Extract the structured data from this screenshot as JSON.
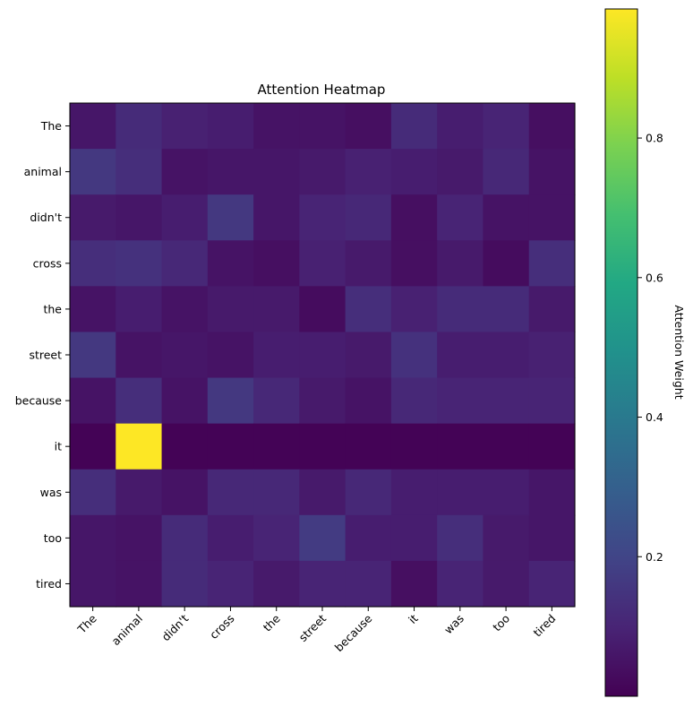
{
  "chart_data": {
    "type": "heatmap",
    "title": "Attention Heatmap",
    "x_labels": [
      "The",
      "animal",
      "didn't",
      "cross",
      "the",
      "street",
      "because",
      "it",
      "was",
      "too",
      "tired"
    ],
    "y_labels": [
      "The",
      "animal",
      "didn't",
      "cross",
      "the",
      "street",
      "because",
      "it",
      "was",
      "too",
      "tired"
    ],
    "values": [
      [
        0.06,
        0.12,
        0.09,
        0.08,
        0.05,
        0.05,
        0.04,
        0.12,
        0.08,
        0.1,
        0.04
      ],
      [
        0.16,
        0.13,
        0.05,
        0.06,
        0.06,
        0.07,
        0.09,
        0.08,
        0.07,
        0.11,
        0.05
      ],
      [
        0.07,
        0.06,
        0.08,
        0.16,
        0.06,
        0.1,
        0.11,
        0.04,
        0.1,
        0.05,
        0.05
      ],
      [
        0.13,
        0.14,
        0.11,
        0.05,
        0.04,
        0.09,
        0.07,
        0.04,
        0.07,
        0.03,
        0.13
      ],
      [
        0.05,
        0.08,
        0.05,
        0.07,
        0.07,
        0.03,
        0.13,
        0.09,
        0.12,
        0.12,
        0.07
      ],
      [
        0.16,
        0.05,
        0.06,
        0.05,
        0.08,
        0.08,
        0.07,
        0.14,
        0.08,
        0.08,
        0.09
      ],
      [
        0.05,
        0.13,
        0.05,
        0.16,
        0.11,
        0.07,
        0.05,
        0.11,
        0.1,
        0.1,
        0.1
      ],
      [
        0.005,
        0.985,
        0.005,
        0.005,
        0.005,
        0.005,
        0.005,
        0.005,
        0.005,
        0.005,
        0.005
      ],
      [
        0.13,
        0.07,
        0.05,
        0.11,
        0.11,
        0.07,
        0.11,
        0.08,
        0.08,
        0.08,
        0.06
      ],
      [
        0.06,
        0.05,
        0.12,
        0.08,
        0.1,
        0.17,
        0.08,
        0.08,
        0.13,
        0.07,
        0.06
      ],
      [
        0.06,
        0.05,
        0.12,
        0.1,
        0.07,
        0.1,
        0.1,
        0.04,
        0.1,
        0.07,
        0.1
      ]
    ],
    "vmin": 0.0,
    "vmax": 0.985,
    "colormap": "viridis",
    "colorbar": {
      "label": "Attention Weight",
      "ticks": [
        0.2,
        0.4,
        0.6,
        0.8
      ],
      "tick_labels": [
        "0.2",
        "0.4",
        "0.6",
        "0.8"
      ]
    }
  }
}
